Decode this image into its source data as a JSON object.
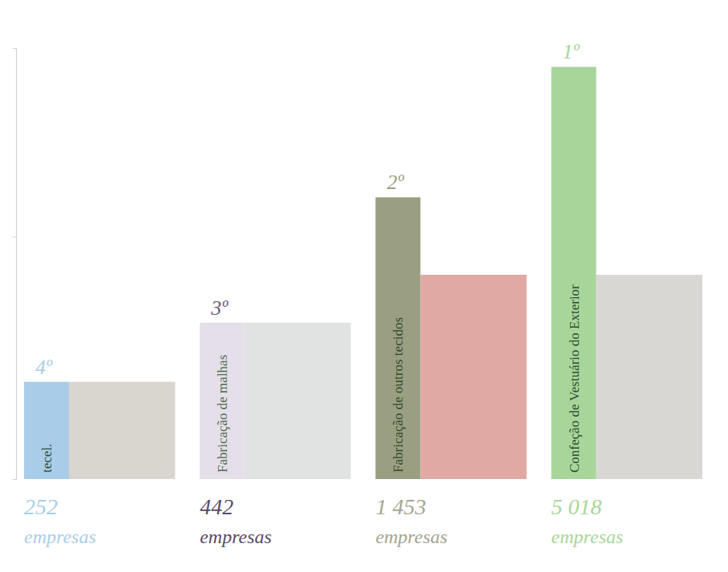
{
  "chart_data": {
    "type": "bar",
    "categories": [
      "tecel.",
      "Fabricação de malhas",
      "Fabricação de outros tecidos",
      "Confeção de Vestuário do Exterior"
    ],
    "values": [
      252,
      442,
      1453,
      5018
    ],
    "value_labels": [
      "252",
      "442",
      "1 453",
      "5 018"
    ],
    "ranks": [
      "4º",
      "3º",
      "2º",
      "1º"
    ],
    "unit_label": "empresas",
    "colors": [
      "#a9cde8",
      "#e4dfe9",
      "#9a9f82",
      "#a8d69a"
    ],
    "log": "y",
    "ylim": [
      100,
      6000
    ],
    "yticks": [
      100,
      1000
    ],
    "tick_labels": false,
    "data_labels": true,
    "grid": false
  }
}
